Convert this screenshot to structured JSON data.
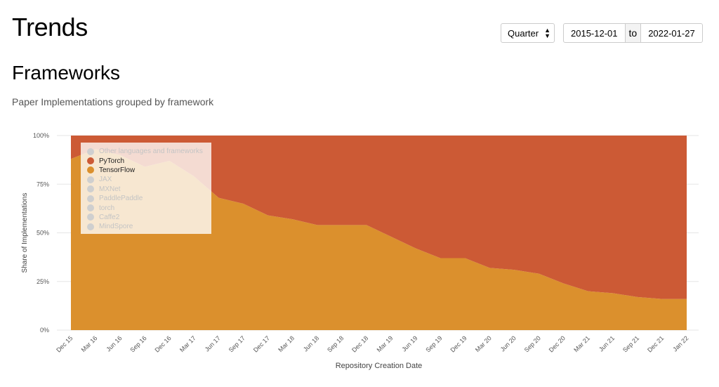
{
  "header": {
    "title": "Trends",
    "period_select": "Quarter",
    "date_from": "2015-12-01",
    "date_to": "2022-01-27",
    "to_label": "to"
  },
  "section": {
    "title": "Frameworks",
    "subtitle": "Paper Implementations grouped by framework"
  },
  "legend": {
    "items": [
      {
        "label": "Other languages and frameworks",
        "active": false
      },
      {
        "label": "PyTorch",
        "active": true,
        "color": "#cc5a35"
      },
      {
        "label": "TensorFlow",
        "active": true,
        "color": "#db902d"
      },
      {
        "label": "JAX",
        "active": false
      },
      {
        "label": "MXNet",
        "active": false
      },
      {
        "label": "PaddlePaddle",
        "active": false
      },
      {
        "label": "torch",
        "active": false
      },
      {
        "label": "Caffe2",
        "active": false
      },
      {
        "label": "MindSpore",
        "active": false
      }
    ]
  },
  "chart_data": {
    "type": "area",
    "stacked": true,
    "normalized": true,
    "xlabel": "Repository Creation Date",
    "ylabel": "Share of Implementations",
    "ylim": [
      0,
      100
    ],
    "yticks": [
      "0%",
      "25%",
      "50%",
      "75%",
      "100%"
    ],
    "grid": true,
    "legend_position": "top-left",
    "categories": [
      "Dec 15",
      "Mar 16",
      "Jun 16",
      "Sep 16",
      "Dec 16",
      "Mar 17",
      "Jun 17",
      "Sep 17",
      "Dec 17",
      "Mar 18",
      "Jun 18",
      "Sep 18",
      "Dec 18",
      "Mar 19",
      "Jun 19",
      "Sep 19",
      "Dec 19",
      "Mar 20",
      "Jun 20",
      "Sep 20",
      "Dec 20",
      "Mar 21",
      "Jun 21",
      "Sep 21",
      "Dec 21",
      "Jan 22"
    ],
    "series": [
      {
        "name": "TensorFlow",
        "color": "#db902d",
        "values": [
          88,
          93,
          90,
          84,
          87,
          79,
          68,
          65,
          59,
          57,
          54,
          54,
          54,
          48,
          42,
          37,
          37,
          32,
          31,
          29,
          24,
          20,
          19,
          17,
          16,
          16
        ]
      },
      {
        "name": "PyTorch",
        "color": "#cc5a35",
        "values": [
          12,
          7,
          10,
          16,
          13,
          21,
          32,
          35,
          41,
          43,
          46,
          46,
          46,
          52,
          58,
          63,
          63,
          68,
          69,
          71,
          76,
          80,
          81,
          83,
          84,
          84
        ]
      }
    ]
  }
}
